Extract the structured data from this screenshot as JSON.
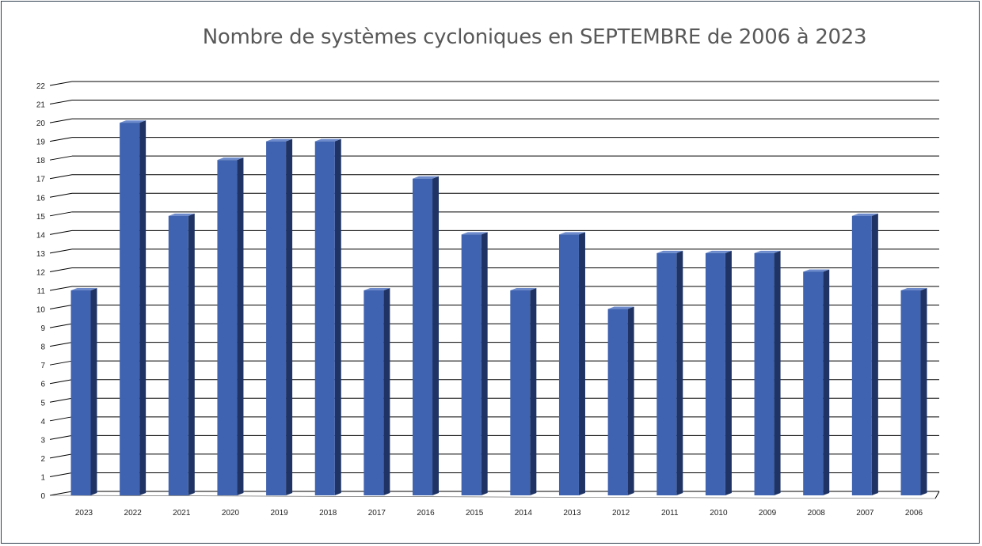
{
  "chart_data": {
    "type": "bar",
    "title": "Nombre de systèmes cycloniques en SEPTEMBRE de 2006 à 2023",
    "categories": [
      "2023",
      "2022",
      "2021",
      "2020",
      "2019",
      "2018",
      "2017",
      "2016",
      "2015",
      "2014",
      "2013",
      "2012",
      "2011",
      "2010",
      "2009",
      "2008",
      "2007",
      "2006"
    ],
    "values": [
      11,
      20,
      15,
      18,
      19,
      19,
      11,
      17,
      14,
      11,
      14,
      10,
      13,
      13,
      13,
      12,
      15,
      11
    ],
    "y_ticks": [
      "0",
      "1",
      "2",
      "3",
      "4",
      "5",
      "6",
      "7",
      "8",
      "9",
      "10",
      "11",
      "12",
      "13",
      "14",
      "15",
      "16",
      "17",
      "18",
      "19",
      "20",
      "21",
      "22"
    ],
    "ylim": [
      0,
      22
    ],
    "grid": true,
    "style": "3d-column",
    "colors": {
      "bar_front": "#3f63b0",
      "bar_side": "#1f3464",
      "bar_top": "#6d8bcc",
      "grid": "#000000"
    }
  }
}
